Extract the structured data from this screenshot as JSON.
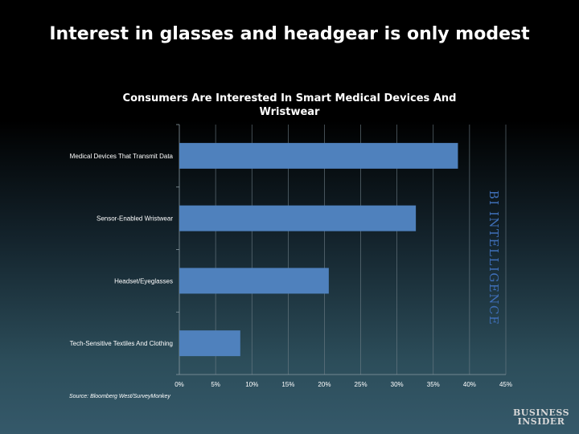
{
  "slide": {
    "title": "Interest in glasses and headgear is only modest",
    "source": "Source: Bloomberg West/SurveyMonkey",
    "watermark": "BI INTELLIGENCE",
    "logo_line1": "BUSINESS",
    "logo_line2": "INSIDER"
  },
  "chart_data": {
    "type": "bar",
    "orientation": "horizontal",
    "title": "Consumers Are Interested In Smart Medical Devices And Wristwear",
    "categories": [
      "Medical Devices That Transmit Data",
      "Sensor-Enabled Wristwear",
      "Headset/Eyeglasses",
      "Tech-Sensitive Textiles And Clothing"
    ],
    "values": [
      38.4,
      32.6,
      20.6,
      8.4
    ],
    "unit": "%",
    "xlim": [
      0,
      45
    ],
    "xticks": [
      "0%",
      "5%",
      "10%",
      "15%",
      "20%",
      "25%",
      "30%",
      "35%",
      "40%",
      "45%"
    ],
    "grid": true,
    "legend": "none",
    "bar_color": "#4f81bd"
  }
}
